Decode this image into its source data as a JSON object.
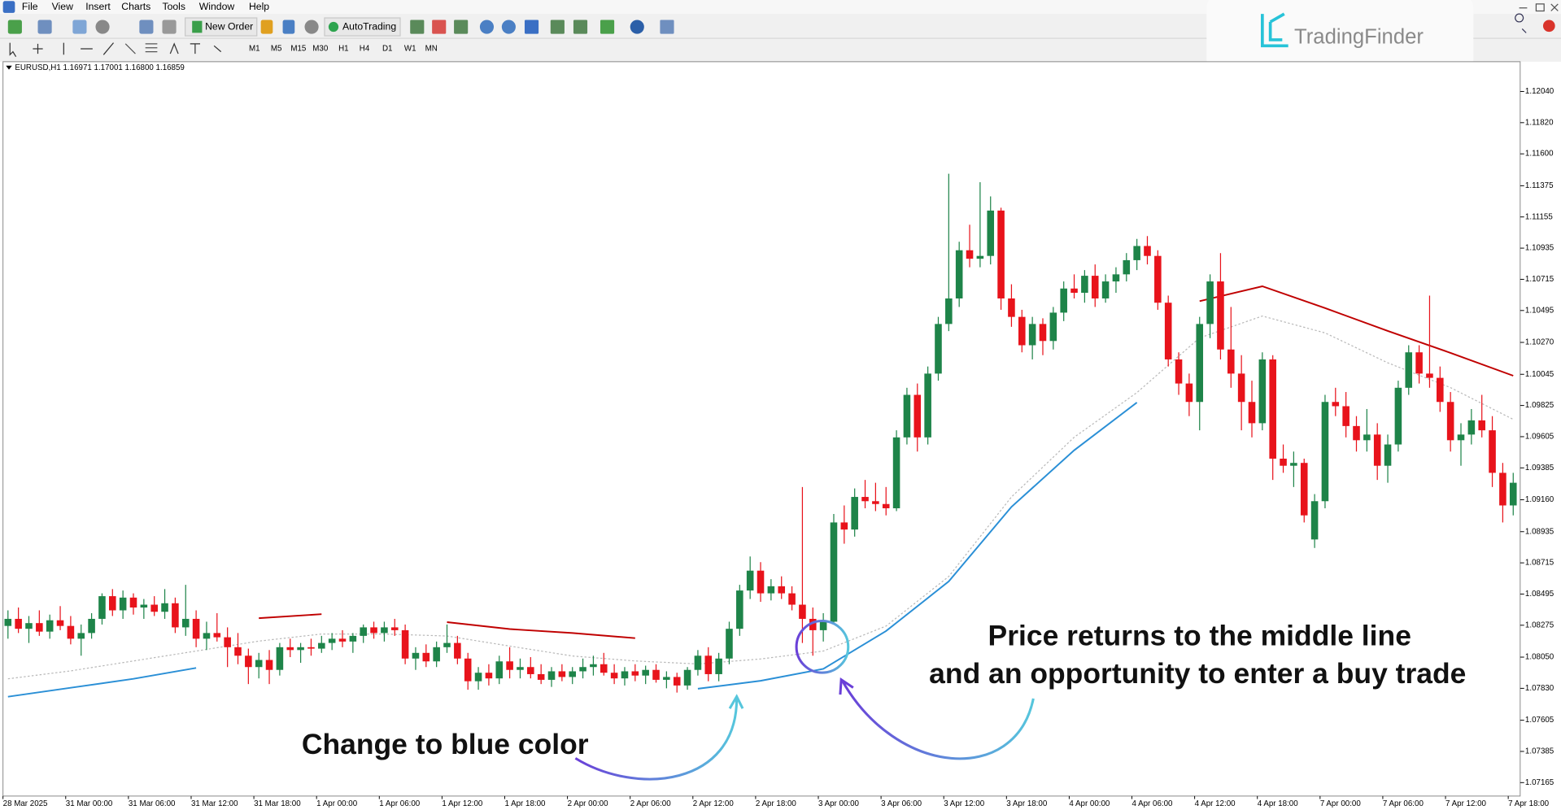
{
  "menu": [
    "File",
    "View",
    "Insert",
    "Charts",
    "Tools",
    "Window",
    "Help"
  ],
  "toolbar": {
    "new_order": "New Order",
    "autotrading": "AutoTrading"
  },
  "timeframes": [
    "M1",
    "M5",
    "M15",
    "M30",
    "H1",
    "H4",
    "D1",
    "W1",
    "MN"
  ],
  "logo": "TradingFinder",
  "chart_data": {
    "type": "candlestick",
    "title": "EURUSD,H1  1.16971 1.17001 1.16800 1.16859",
    "categories": [
      "28 Mar 2025",
      null,
      null,
      null,
      null,
      null,
      "31 Mar 00:00",
      null,
      null,
      null,
      null,
      null,
      "31 Mar 06:00",
      null,
      null,
      null,
      null,
      null,
      "31 Mar 12:00",
      null,
      null,
      null,
      null,
      null,
      "31 Mar 18:00",
      null,
      null,
      null,
      null,
      null,
      "1 Apr 00:00",
      null,
      null,
      null,
      null,
      null,
      "1 Apr 06:00",
      null,
      null,
      null,
      null,
      null,
      "1 Apr 12:00",
      null,
      null,
      null,
      null,
      null,
      "1 Apr 18:00",
      null,
      null,
      null,
      null,
      null,
      "2 Apr 00:00",
      null,
      null,
      null,
      null,
      null,
      "2 Apr 06:00",
      null,
      null,
      null,
      null,
      null,
      "2 Apr 12:00",
      null,
      null,
      null,
      null,
      null,
      "2 Apr 18:00",
      null,
      null,
      null,
      null,
      null,
      "3 Apr 00:00",
      null,
      null,
      null,
      null,
      null,
      "3 Apr 06:00",
      null,
      null,
      null,
      null,
      null,
      "3 Apr 12:00",
      null,
      null,
      null,
      null,
      null,
      "3 Apr 18:00",
      null,
      null,
      null,
      null,
      null,
      "4 Apr 00:00",
      null,
      null,
      null,
      null,
      null,
      "4 Apr 06:00",
      null,
      null,
      null,
      null,
      null,
      "4 Apr 12:00",
      null,
      null,
      null,
      null,
      null,
      "4 Apr 18:00",
      null,
      null,
      null,
      null,
      null,
      "7 Apr 00:00",
      null,
      null,
      null,
      null,
      null,
      "7 Apr 06:00",
      null,
      null,
      null,
      null,
      null,
      "7 Apr 12:00",
      null,
      null,
      null,
      null,
      null,
      "7 Apr 18:00"
    ],
    "open": [
      1.0827,
      1.0832,
      1.0825,
      1.0829,
      1.0823,
      1.0831,
      1.0827,
      1.0818,
      1.0822,
      1.0832,
      1.0848,
      1.0838,
      1.0847,
      1.084,
      1.0842,
      1.0837,
      1.0843,
      1.0826,
      1.0832,
      1.0818,
      1.0822,
      1.0819,
      1.0812,
      1.0806,
      1.0798,
      1.0803,
      1.0796,
      1.0812,
      1.081,
      1.0812,
      1.0811,
      1.0815,
      1.0818,
      1.0816,
      1.082,
      1.0826,
      1.0822,
      1.0826,
      1.0824,
      1.0804,
      1.0808,
      1.0802,
      1.0812,
      1.0815,
      1.0804,
      1.0788,
      1.0794,
      1.079,
      1.0802,
      1.0796,
      1.0798,
      1.0793,
      1.0789,
      1.0795,
      1.0791,
      1.0795,
      1.0798,
      1.08,
      1.0794,
      1.079,
      1.0795,
      1.0792,
      1.0796,
      1.0789,
      1.0791,
      1.0785,
      1.0796,
      1.0806,
      1.0793,
      1.0804,
      1.0825,
      1.0852,
      1.0866,
      1.085,
      1.0855,
      1.085,
      1.0842,
      1.0832,
      1.0824,
      1.083,
      1.09,
      1.0895,
      1.0918,
      1.0915,
      1.0913,
      1.091,
      1.096,
      1.099,
      1.096,
      1.1005,
      1.104,
      1.1058,
      1.1092,
      1.1086,
      1.1088,
      1.112,
      1.1058,
      1.1045,
      1.1025,
      1.104,
      1.1028,
      1.1048,
      1.1065,
      1.1062,
      1.1074,
      1.1058,
      1.107,
      1.1075,
      1.1085,
      1.1095,
      1.1088,
      1.1055,
      1.1015,
      1.0998,
      1.0985,
      1.104,
      1.107,
      1.1022,
      1.1005,
      1.0985,
      1.097,
      1.1015,
      1.0945,
      1.094,
      1.0942,
      1.0888,
      1.0915,
      1.0985,
      1.0982,
      1.0968,
      1.0958,
      1.0962,
      1.094,
      1.0955,
      1.0995,
      1.102,
      1.1005,
      1.1002,
      1.0985,
      1.0958,
      1.0962,
      1.0972,
      1.0965,
      1.0935,
      1.0912
    ],
    "high": [
      1.0838,
      1.084,
      1.0834,
      1.0838,
      1.0835,
      1.0841,
      1.0834,
      1.0828,
      1.0836,
      1.085,
      1.0853,
      1.0852,
      1.085,
      1.0846,
      1.0848,
      1.0853,
      1.0847,
      1.0856,
      1.0838,
      1.083,
      1.0836,
      1.0826,
      1.0822,
      1.0811,
      1.0808,
      1.081,
      1.0815,
      1.0818,
      1.0815,
      1.0818,
      1.082,
      1.0822,
      1.0824,
      1.0822,
      1.0828,
      1.083,
      1.083,
      1.0832,
      1.0828,
      1.0812,
      1.0814,
      1.0816,
      1.0828,
      1.082,
      1.0808,
      1.0798,
      1.08,
      1.0806,
      1.0812,
      1.0804,
      1.0805,
      1.08,
      1.0798,
      1.08,
      1.0798,
      1.0804,
      1.0806,
      1.0808,
      1.08,
      1.0798,
      1.08,
      1.0799,
      1.08,
      1.0795,
      1.0794,
      1.0798,
      1.081,
      1.0812,
      1.0808,
      1.083,
      1.0856,
      1.0876,
      1.0872,
      1.086,
      1.0862,
      1.0855,
      1.0925,
      1.084,
      1.0836,
      1.0906,
      1.0912,
      1.0924,
      1.093,
      1.0928,
      1.0925,
      1.0965,
      1.0995,
      1.0998,
      1.101,
      1.1045,
      1.1146,
      1.1098,
      1.111,
      1.114,
      1.113,
      1.1122,
      1.1068,
      1.105,
      1.1045,
      1.1044,
      1.1052,
      1.107,
      1.1075,
      1.1078,
      1.1082,
      1.1075,
      1.108,
      1.109,
      1.11,
      1.1102,
      1.1092,
      1.106,
      1.102,
      1.1005,
      1.1045,
      1.1075,
      1.109,
      1.1052,
      1.1018,
      1.1,
      1.102,
      1.1018,
      1.0955,
      1.095,
      1.0945,
      1.092,
      1.099,
      1.0995,
      1.0992,
      1.0975,
      1.098,
      1.097,
      1.0962,
      1.1,
      1.1025,
      1.1025,
      1.106,
      1.101,
      1.0992,
      1.097,
      1.098,
      1.099,
      1.0975,
      1.0942,
      1.0935
    ],
    "low": [
      1.0818,
      1.0822,
      1.0815,
      1.082,
      1.0818,
      1.0824,
      1.0814,
      1.0806,
      1.0818,
      1.0828,
      1.0834,
      1.0832,
      1.0835,
      1.0832,
      1.0834,
      1.0832,
      1.0822,
      1.082,
      1.0812,
      1.081,
      1.0816,
      1.0798,
      1.08,
      1.0786,
      1.079,
      1.0786,
      1.0792,
      1.0805,
      1.0801,
      1.0806,
      1.0808,
      1.081,
      1.0812,
      1.0808,
      1.0815,
      1.0818,
      1.0816,
      1.082,
      1.08,
      1.0796,
      1.0798,
      1.0798,
      1.0808,
      1.08,
      1.0782,
      1.0782,
      1.0785,
      1.0786,
      1.079,
      1.079,
      1.079,
      1.0786,
      1.0784,
      1.0788,
      1.0786,
      1.079,
      1.0792,
      1.0792,
      1.0786,
      1.0785,
      1.0788,
      1.0786,
      1.0787,
      1.0783,
      1.078,
      1.0782,
      1.0792,
      1.0788,
      1.0788,
      1.08,
      1.082,
      1.0846,
      1.0844,
      1.0845,
      1.0846,
      1.0838,
      1.0815,
      1.0806,
      1.0816,
      1.0828,
      1.0885,
      1.089,
      1.091,
      1.0908,
      1.0905,
      1.0908,
      1.0955,
      1.095,
      1.0955,
      1.1,
      1.1035,
      1.1052,
      1.108,
      1.108,
      1.1082,
      1.105,
      1.1038,
      1.102,
      1.1015,
      1.1018,
      1.1022,
      1.1042,
      1.1058,
      1.1055,
      1.1052,
      1.1055,
      1.1062,
      1.107,
      1.1078,
      1.1082,
      1.105,
      1.101,
      1.099,
      1.0975,
      1.0965,
      1.103,
      1.1015,
      1.0995,
      1.0965,
      1.096,
      1.0965,
      1.093,
      1.0935,
      1.0925,
      1.09,
      1.0882,
      1.091,
      1.0975,
      1.096,
      1.095,
      1.095,
      1.093,
      1.0928,
      1.095,
      1.099,
      1.0998,
      1.0995,
      1.0978,
      1.095,
      1.094,
      1.0955,
      1.096,
      1.0925,
      1.09,
      1.0905
    ],
    "close": [
      1.0832,
      1.0825,
      1.0829,
      1.0823,
      1.0831,
      1.0827,
      1.0818,
      1.0822,
      1.0832,
      1.0848,
      1.0838,
      1.0847,
      1.084,
      1.0842,
      1.0837,
      1.0843,
      1.0826,
      1.0832,
      1.0818,
      1.0822,
      1.0819,
      1.0812,
      1.0806,
      1.0798,
      1.0803,
      1.0796,
      1.0812,
      1.081,
      1.0812,
      1.0811,
      1.0815,
      1.0818,
      1.0816,
      1.082,
      1.0826,
      1.0822,
      1.0826,
      1.0824,
      1.0804,
      1.0808,
      1.0802,
      1.0812,
      1.0815,
      1.0804,
      1.0788,
      1.0794,
      1.079,
      1.0802,
      1.0796,
      1.0798,
      1.0793,
      1.0789,
      1.0795,
      1.0791,
      1.0795,
      1.0798,
      1.08,
      1.0794,
      1.079,
      1.0795,
      1.0792,
      1.0796,
      1.0789,
      1.0791,
      1.0785,
      1.0796,
      1.0806,
      1.0793,
      1.0804,
      1.0825,
      1.0852,
      1.0866,
      1.085,
      1.0855,
      1.085,
      1.0842,
      1.0832,
      1.0824,
      1.083,
      1.09,
      1.0895,
      1.0918,
      1.0915,
      1.0913,
      1.091,
      1.096,
      1.099,
      1.096,
      1.1005,
      1.104,
      1.1058,
      1.1092,
      1.1086,
      1.1088,
      1.112,
      1.1058,
      1.1045,
      1.1025,
      1.104,
      1.1028,
      1.1048,
      1.1065,
      1.1062,
      1.1074,
      1.1058,
      1.107,
      1.1075,
      1.1085,
      1.1095,
      1.1088,
      1.1055,
      1.1015,
      1.0998,
      1.0985,
      1.104,
      1.107,
      1.1022,
      1.1005,
      1.0985,
      1.097,
      1.1015,
      1.0945,
      1.094,
      1.0942,
      1.0905,
      1.0915,
      1.0985,
      1.0982,
      1.0968,
      1.0958,
      1.0962,
      1.094,
      1.0955,
      1.0995,
      1.102,
      1.1005,
      1.1002,
      1.0985,
      1.0958,
      1.0962,
      1.0972,
      1.0965,
      1.0935,
      1.0912,
      1.0928
    ],
    "up_color": "#1e8449",
    "down_color": "#e8131b",
    "series": [
      {
        "color": "#b8b8b8",
        "style": "dotted",
        "x": [
          "28 Mar 2025",
          "31 Mar 00:00",
          "31 Mar 06:00",
          "31 Mar 12:00",
          "31 Mar 18:00",
          "1 Apr 00:00",
          "1 Apr 06:00",
          "1 Apr 12:00",
          "1 Apr 18:00",
          "2 Apr 00:00",
          "2 Apr 06:00",
          "2 Apr 12:00",
          "2 Apr 18:00",
          "3 Apr 00:00",
          "3 Apr 06:00",
          "3 Apr 12:00",
          "3 Apr 18:00",
          "4 Apr 00:00",
          "4 Apr 06:00",
          "4 Apr 12:00",
          "4 Apr 18:00",
          "7 Apr 00:00",
          "7 Apr 06:00",
          "7 Apr 12:00",
          "7 Apr 18:00"
        ],
        "values": [
          1.07897,
          1.07953,
          1.08023,
          1.08093,
          1.08163,
          1.08213,
          1.08213,
          1.08199,
          1.08128,
          1.08058,
          1.08023,
          1.08002,
          1.08037,
          1.08093,
          1.08269,
          1.08619,
          1.0918,
          1.09601,
          1.09916,
          1.10302,
          1.10456,
          1.10337,
          1.10126,
          1.09951,
          1.09727
        ]
      },
      {
        "color": "#c00000",
        "style": "solid",
        "x": [
          "28 Mar 2025",
          "31 Mar 00:00",
          "31 Mar 06:00",
          "31 Mar 12:00",
          "31 Mar 18:00",
          "1 Apr 00:00",
          "1 Apr 06:00",
          "1 Apr 12:00",
          "1 Apr 18:00",
          "2 Apr 00:00",
          "2 Apr 06:00",
          "2 Apr 12:00",
          "2 Apr 18:00",
          "3 Apr 00:00",
          "3 Apr 06:00",
          "3 Apr 12:00",
          "3 Apr 18:00",
          "4 Apr 00:00",
          "4 Apr 06:00",
          "4 Apr 12:00",
          "4 Apr 18:00",
          "7 Apr 00:00",
          "7 Apr 06:00",
          "7 Apr 12:00",
          "7 Apr 18:00"
        ],
        "values": [
          null,
          null,
          null,
          null,
          1.08325,
          1.08353,
          null,
          1.08297,
          1.08248,
          1.0822,
          1.08184,
          null,
          null,
          null,
          null,
          null,
          null,
          null,
          null,
          1.10561,
          1.10666,
          1.10512,
          1.10351,
          1.10196,
          1.10035
        ]
      },
      {
        "color": "#2a8fd6",
        "style": "solid",
        "x": [
          "28 Mar 2025",
          "31 Mar 00:00",
          "31 Mar 06:00",
          "31 Mar 12:00",
          "31 Mar 18:00",
          "1 Apr 00:00",
          "1 Apr 06:00",
          "1 Apr 12:00",
          "1 Apr 18:00",
          "2 Apr 00:00",
          "2 Apr 06:00",
          "2 Apr 12:00",
          "2 Apr 18:00",
          "3 Apr 00:00",
          "3 Apr 06:00",
          "3 Apr 12:00",
          "3 Apr 18:00",
          "4 Apr 00:00",
          "4 Apr 06:00",
          "4 Apr 12:00",
          "4 Apr 18:00",
          "7 Apr 00:00",
          "7 Apr 06:00",
          "7 Apr 12:00",
          "7 Apr 18:00"
        ],
        "values": [
          1.07771,
          1.07834,
          1.07897,
          1.07974,
          null,
          null,
          null,
          null,
          null,
          null,
          null,
          1.07827,
          1.07883,
          1.07967,
          1.08234,
          1.08584,
          1.0911,
          1.09509,
          1.09846,
          null,
          null,
          null,
          null,
          null,
          null
        ]
      }
    ],
    "ylim": [
      1.0707,
      1.1225
    ],
    "yticks": [
      {
        "value": 1.1204,
        "label": "1.12040"
      },
      {
        "value": 1.1182,
        "label": "1.11820"
      },
      {
        "value": 1.116,
        "label": "1.11600"
      },
      {
        "value": 1.11375,
        "label": "1.11375"
      },
      {
        "value": 1.11155,
        "label": "1.11155"
      },
      {
        "value": 1.10935,
        "label": "1.10935"
      },
      {
        "value": 1.10715,
        "label": "1.10715"
      },
      {
        "value": 1.10495,
        "label": "1.10495"
      },
      {
        "value": 1.1027,
        "label": "1.10270"
      },
      {
        "value": 1.10045,
        "label": "1.10045"
      },
      {
        "value": 1.09825,
        "label": "1.09825"
      },
      {
        "value": 1.09605,
        "label": "1.09605"
      },
      {
        "value": 1.09385,
        "label": "1.09385"
      },
      {
        "value": 1.0916,
        "label": "1.09160"
      },
      {
        "value": 1.08935,
        "label": "1.08935"
      },
      {
        "value": 1.08715,
        "label": "1.08715"
      },
      {
        "value": 1.08495,
        "label": "1.08495"
      },
      {
        "value": 1.08275,
        "label": "1.08275"
      },
      {
        "value": 1.0805,
        "label": "1.08050"
      },
      {
        "value": 1.0783,
        "label": "1.07830"
      },
      {
        "value": 1.07605,
        "label": "1.07605"
      },
      {
        "value": 1.07385,
        "label": "1.07385"
      },
      {
        "value": 1.07165,
        "label": "1.07165"
      }
    ],
    "annotations": [
      "Price returns to the middle line",
      "and an opportunity to enter a buy trade",
      "Change to blue color"
    ]
  }
}
